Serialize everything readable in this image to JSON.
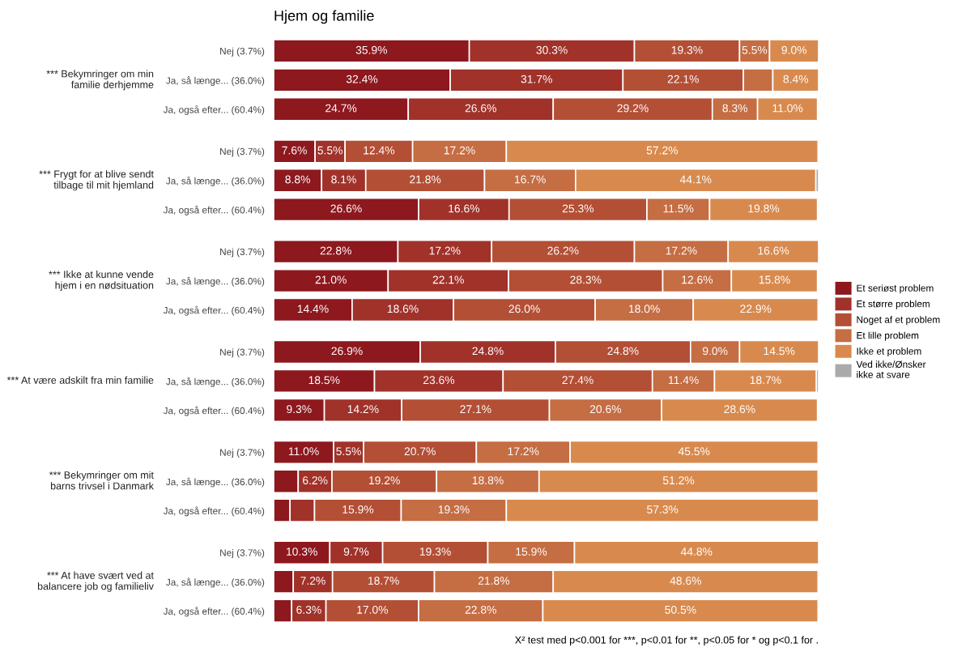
{
  "chart_data": {
    "type": "bar",
    "orientation": "horizontal",
    "stacked": true,
    "title": "Hjem og familie",
    "categories": [
      "Nej (3.7%)",
      "Ja, så længe... (36.0%)",
      "Ja, også efter... (60.4%)",
      "Nej (3.7%)",
      "Ja, så længe... (36.0%)",
      "Ja, også efter... (60.4%)",
      "Nej (3.7%)",
      "Ja, så længe... (36.0%)",
      "Ja, også efter... (60.4%)",
      "Nej (3.7%)",
      "Ja, så længe... (36.0%)",
      "Ja, også efter... (60.4%)",
      "Nej (3.7%)",
      "Ja, så længe... (36.0%)",
      "Ja, også efter... (60.4%)",
      "Nej (3.7%)",
      "Ja, så længe... (36.0%)",
      "Ja, også efter... (60.4%)"
    ],
    "series": [
      {
        "name": "Et seriøst problem",
        "color": "#8d181e",
        "values": [
          35.9,
          32.4,
          24.7,
          7.6,
          8.8,
          26.6,
          22.8,
          21.0,
          14.4,
          26.9,
          18.5,
          9.3,
          11.0,
          4.5,
          3.0,
          10.3,
          3.6,
          3.3
        ],
        "value_labels": [
          "35.9%",
          "32.4%",
          "24.7%",
          "7.6%",
          "8.8%",
          "26.6%",
          "22.8%",
          "21.0%",
          "14.4%",
          "26.9%",
          "18.5%",
          "9.3%",
          "11.0%",
          null,
          null,
          "10.3%",
          null,
          null
        ]
      },
      {
        "name": "Et større problem",
        "color": "#a0322a",
        "values": [
          30.3,
          31.7,
          26.6,
          5.5,
          8.1,
          16.6,
          17.2,
          22.1,
          18.6,
          24.8,
          23.6,
          14.2,
          5.5,
          6.2,
          4.5,
          9.7,
          7.2,
          6.3
        ],
        "value_labels": [
          "30.3%",
          "31.7%",
          "26.6%",
          "5.5%",
          "8.1%",
          "16.6%",
          "17.2%",
          "22.1%",
          "18.6%",
          "24.8%",
          "23.6%",
          "14.2%",
          "5.5%",
          "6.2%",
          null,
          "9.7%",
          "7.2%",
          "6.3%"
        ]
      },
      {
        "name": "Noget af et problem",
        "color": "#b34f35",
        "values": [
          19.3,
          22.1,
          29.2,
          12.4,
          21.8,
          25.3,
          26.2,
          28.3,
          26.0,
          24.8,
          27.4,
          27.1,
          20.7,
          19.2,
          15.9,
          19.3,
          18.7,
          17.0
        ],
        "value_labels": [
          "19.3%",
          "22.1%",
          "29.2%",
          "12.4%",
          "21.8%",
          "25.3%",
          "26.2%",
          "28.3%",
          "26.0%",
          "24.8%",
          "27.4%",
          "27.1%",
          "20.7%",
          "19.2%",
          "15.9%",
          "19.3%",
          "18.7%",
          "17.0%"
        ]
      },
      {
        "name": "Et lille problem",
        "color": "#c56d43",
        "values": [
          5.5,
          5.4,
          8.3,
          17.2,
          16.7,
          11.5,
          17.2,
          12.6,
          18.0,
          9.0,
          11.4,
          20.6,
          17.2,
          18.8,
          19.3,
          15.9,
          21.8,
          22.8
        ],
        "value_labels": [
          "5.5%",
          null,
          "8.3%",
          "17.2%",
          "16.7%",
          "11.5%",
          "17.2%",
          "12.6%",
          "18.0%",
          "9.0%",
          "11.4%",
          "20.6%",
          "17.2%",
          "18.8%",
          "19.3%",
          "15.9%",
          "21.8%",
          "22.8%"
        ]
      },
      {
        "name": "Ikke et problem",
        "color": "#d88a4e",
        "values": [
          9.0,
          8.4,
          11.0,
          57.2,
          44.1,
          19.8,
          16.6,
          15.8,
          22.9,
          14.5,
          18.7,
          28.6,
          45.5,
          51.2,
          57.3,
          44.8,
          48.6,
          50.5
        ],
        "value_labels": [
          "9.0%",
          "8.4%",
          "11.0%",
          "57.2%",
          "44.1%",
          "19.8%",
          "16.6%",
          "15.8%",
          "22.9%",
          "14.5%",
          "18.7%",
          "28.6%",
          "45.5%",
          "51.2%",
          "57.3%",
          "44.8%",
          "48.6%",
          "50.5%"
        ]
      },
      {
        "name": "Ved ikke/Ønsker\nikke at svare",
        "color": "#aaaaaa",
        "values": [
          null,
          null,
          null,
          null,
          0.5,
          null,
          null,
          null,
          null,
          null,
          0.4,
          null,
          null,
          null,
          null,
          null,
          null,
          null
        ]
      }
    ],
    "annotations": [
      "*** Bekymringer om min\nfamilie derhjemme",
      "*** Frygt for at blive sendt\ntilbage til mit hjemland",
      "*** Ikke at kunne vende\nhjem i en nødsituation",
      "*** At være adskilt fra min familie",
      "*** Bekymringer om mit\nbarns trivsel i Danmark",
      "*** At have svært ved at\nbalancere job og familieliv",
      "X² test med p<0.001 for ***, p<0.01 for **, p<0.05 for * og p<0.1 for ."
    ],
    "legend": "right",
    "grid": false
  }
}
